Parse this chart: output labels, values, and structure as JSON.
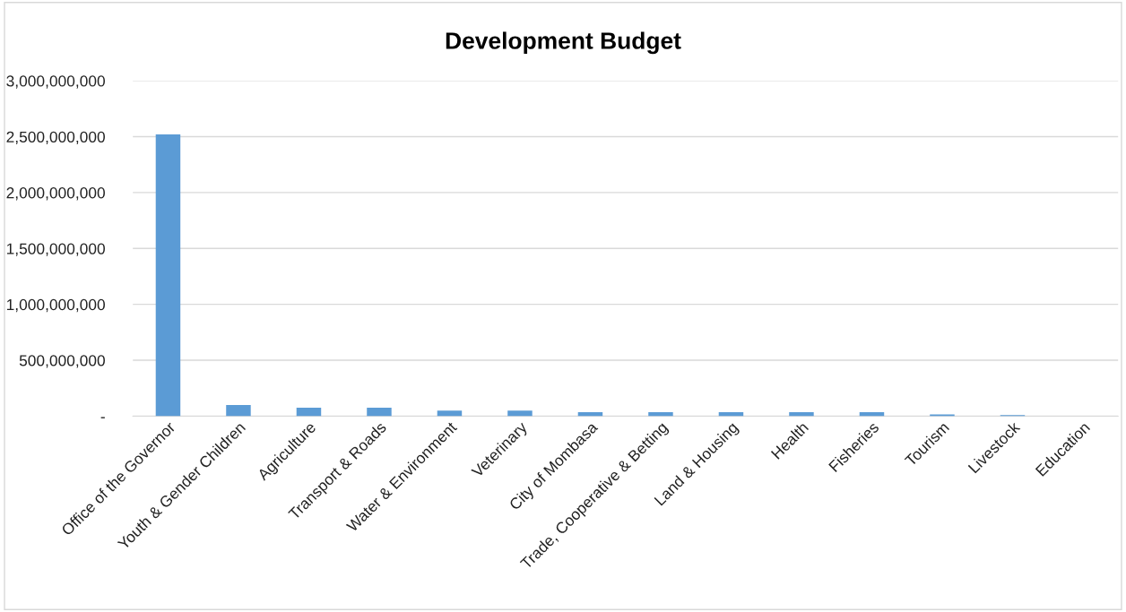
{
  "chart_data": {
    "type": "bar",
    "title": "Development Budget",
    "categories": [
      "Office of the Governor",
      "Youth & Gender Children",
      "Agriculture",
      "Transport & Roads",
      "Water & Environment",
      "Veterinary",
      "City of Mombasa",
      "Trade, Cooperative & Betting",
      "Land & Housing",
      "Health",
      "Fisheries",
      "Tourism",
      "Livestock",
      "Education"
    ],
    "values": [
      2520000000,
      100000000,
      75000000,
      75000000,
      50000000,
      50000000,
      35000000,
      35000000,
      35000000,
      35000000,
      35000000,
      15000000,
      10000000,
      0
    ],
    "color": "#5b9bd5",
    "ylim": [
      0,
      3000000000
    ],
    "yticks": [
      {
        "value": 0,
        "label": "-"
      },
      {
        "value": 500000000,
        "label": "500,000,000"
      },
      {
        "value": 1000000000,
        "label": "1,000,000,000"
      },
      {
        "value": 1500000000,
        "label": "1,500,000,000"
      },
      {
        "value": 2000000000,
        "label": "2,000,000,000"
      },
      {
        "value": 2500000000,
        "label": "2,500,000,000"
      },
      {
        "value": 3000000000,
        "label": "3,000,000,000"
      }
    ],
    "grid": "y",
    "legend": false
  }
}
